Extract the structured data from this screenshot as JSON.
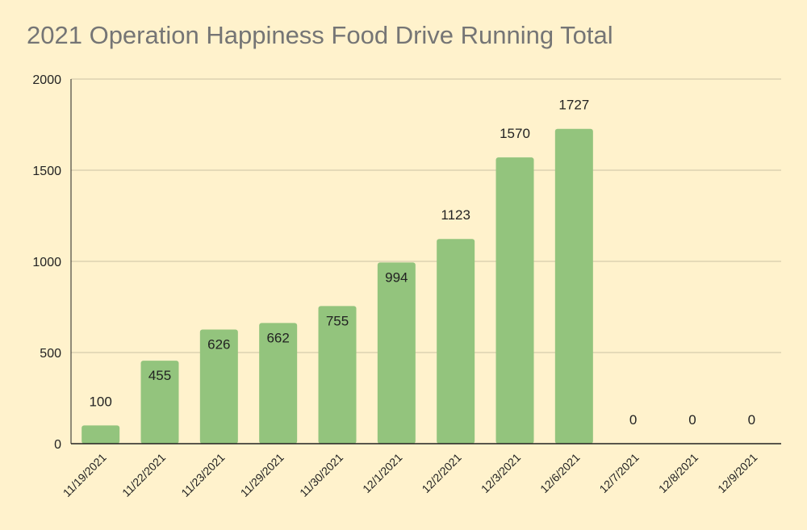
{
  "chart_data": {
    "type": "bar",
    "title": "2021 Operation Happiness Food Drive Running Total",
    "xlabel": "",
    "ylabel": "",
    "categories": [
      "11/19/2021",
      "11/22/2021",
      "11/23/2021",
      "11/29/2021",
      "11/30/2021",
      "12/1/2021",
      "12/2/2021",
      "12/3/2021",
      "12/6/2021",
      "12/7/2021",
      "12/8/2021",
      "12/9/2021"
    ],
    "values": [
      100,
      455,
      626,
      662,
      755,
      994,
      1123,
      1570,
      1727,
      0,
      0,
      0
    ],
    "ylim": [
      0,
      2000
    ],
    "yticks": [
      0,
      500,
      1000,
      1500,
      2000
    ],
    "grid": true,
    "legend": "none",
    "colors": {
      "bar": "#93c47d",
      "background": "#fff2cc",
      "grid": "#cbc2a4",
      "axis": "#222222",
      "title": "#757575"
    }
  }
}
